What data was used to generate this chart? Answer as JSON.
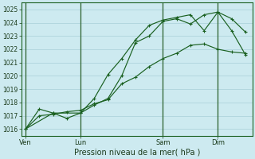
{
  "background_color": "#cdeaf0",
  "grid_color": "#a8d0d8",
  "line_color": "#1a6020",
  "xlabel": "Pression niveau de la mer( hPa )",
  "ylim": [
    1015.5,
    1025.5
  ],
  "yticks": [
    1016,
    1017,
    1018,
    1019,
    1020,
    1021,
    1022,
    1023,
    1024,
    1025
  ],
  "xtick_labels": [
    "Ven",
    "Lun",
    "Sam",
    "Dim"
  ],
  "xtick_positions": [
    0,
    4,
    10,
    14
  ],
  "xlim": [
    -0.3,
    16.5
  ],
  "line1_x": [
    0,
    1,
    2,
    3,
    4,
    5,
    6,
    7,
    8,
    9,
    10,
    11,
    12,
    13,
    14,
    15,
    16
  ],
  "line1_y": [
    1016.0,
    1017.5,
    1017.2,
    1016.8,
    1017.2,
    1017.8,
    1018.3,
    1020.0,
    1022.5,
    1023.0,
    1024.1,
    1024.3,
    1023.9,
    1024.6,
    1024.8,
    1023.4,
    1021.6
  ],
  "line2_x": [
    0,
    1,
    2,
    3,
    4,
    5,
    6,
    7,
    8,
    9,
    10,
    11,
    12,
    13,
    14,
    15,
    16
  ],
  "line2_y": [
    1016.0,
    1017.0,
    1017.1,
    1017.3,
    1017.4,
    1017.9,
    1018.2,
    1019.4,
    1019.9,
    1020.7,
    1021.3,
    1021.7,
    1022.3,
    1022.4,
    1022.0,
    1021.8,
    1021.7
  ],
  "line3_x": [
    0,
    2,
    4,
    5,
    6,
    7,
    8,
    9,
    10,
    11,
    12,
    13,
    14,
    15,
    16
  ],
  "line3_y": [
    1016.0,
    1017.2,
    1017.2,
    1018.3,
    1020.1,
    1021.3,
    1022.7,
    1023.8,
    1024.2,
    1024.4,
    1024.6,
    1023.4,
    1024.8,
    1024.3,
    1023.3
  ],
  "vline_positions": [
    0,
    4,
    10,
    14
  ]
}
